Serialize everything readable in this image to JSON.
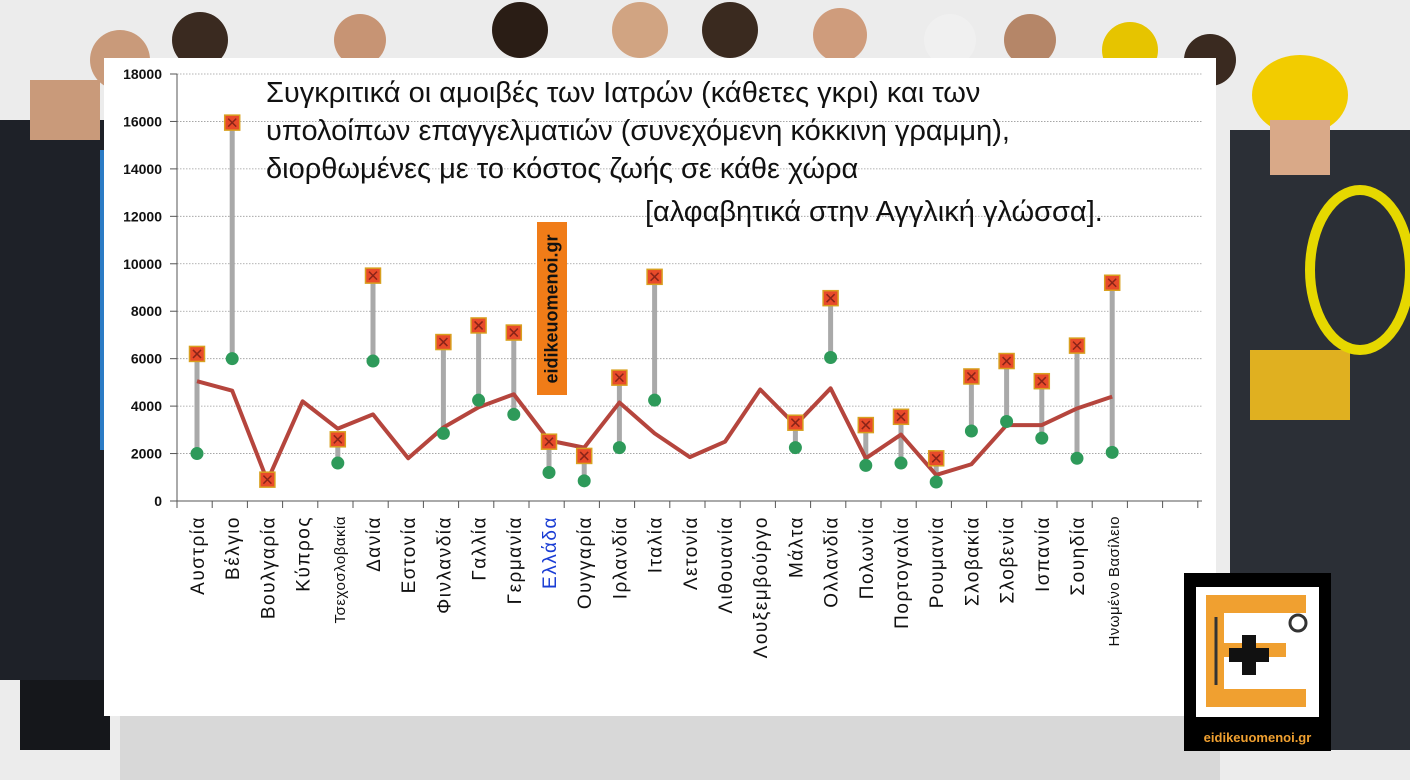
{
  "title": {
    "lines": [
      "Συγκριτικά οι αμοιβές των Ιατρών (κάθετες γκρι) και των",
      "υπολοίπων επαγγελματιών (συνεχόμενη κόκκινη γραμμη),",
      "διορθωμένες με το κόστος ζωής σε κάθε χώρα",
      "[αλφαβητικά στην Αγγλική γλώσσα]."
    ]
  },
  "watermark": "eidikeuomenoi.gr",
  "logo": {
    "text": "eidikeuomenoi.gr",
    "icon": "medical-cross-e-logo"
  },
  "colors": {
    "line": "#b5453d",
    "range_bar": "#a9a9a9",
    "min_marker": "#2e9a5a",
    "max_marker": "#e84a2a",
    "highlight_label": "#1a3dd4",
    "label": "#111111"
  },
  "chart_data": {
    "type": "line",
    "ylim": [
      0,
      18000
    ],
    "yticks": [
      "0",
      "2000",
      "4000",
      "6000",
      "8000",
      "10000",
      "12000",
      "14000",
      "16000",
      "18000"
    ],
    "grid": true,
    "highlight_category": "Ελλάδα",
    "categories": [
      "Αυστρία",
      "Βέλγιο",
      "Βουλγαρία",
      "Κύπρος",
      "Τσεχοσλοβακία",
      "Δανία",
      "Εστονία",
      "Φινλανδία",
      "Γαλλία",
      "Γερμανία",
      "Ελλάδα",
      "Ουγγαρία",
      "Ιρλανδία",
      "Ιταλία",
      "Λετονία",
      "Λιθουανία",
      "Λουξεμβούργο",
      "Μάλτα",
      "Ολλανδία",
      "Πολωνία",
      "Πορτογαλία",
      "Ρουμανία",
      "Σλοβακία",
      "Σλοβενία",
      "Ισπανία",
      "Σουηδία",
      "Ηνωμένο Βασίλειο"
    ],
    "series": [
      {
        "type": "range",
        "min": [
          2000,
          6000,
          850,
          null,
          1600,
          5900,
          null,
          2850,
          4250,
          3650,
          1200,
          850,
          2250,
          4250,
          null,
          null,
          null,
          2250,
          6050,
          1500,
          1600,
          800,
          2950,
          3350,
          2650,
          1800,
          2050
        ],
        "max": [
          6200,
          15950,
          900,
          null,
          2600,
          9500,
          null,
          6700,
          7400,
          7100,
          2500,
          1900,
          5200,
          9450,
          null,
          null,
          null,
          3300,
          8550,
          3200,
          3550,
          1800,
          5250,
          5900,
          5050,
          6550,
          9200
        ]
      },
      {
        "type": "line",
        "values": [
          5050,
          4650,
          850,
          4200,
          3050,
          3650,
          1800,
          3100,
          3950,
          4500,
          2550,
          2250,
          4150,
          2850,
          1850,
          2500,
          4700,
          3200,
          4750,
          1800,
          2800,
          1100,
          1550,
          3200,
          3200,
          3900,
          4400
        ]
      }
    ]
  }
}
